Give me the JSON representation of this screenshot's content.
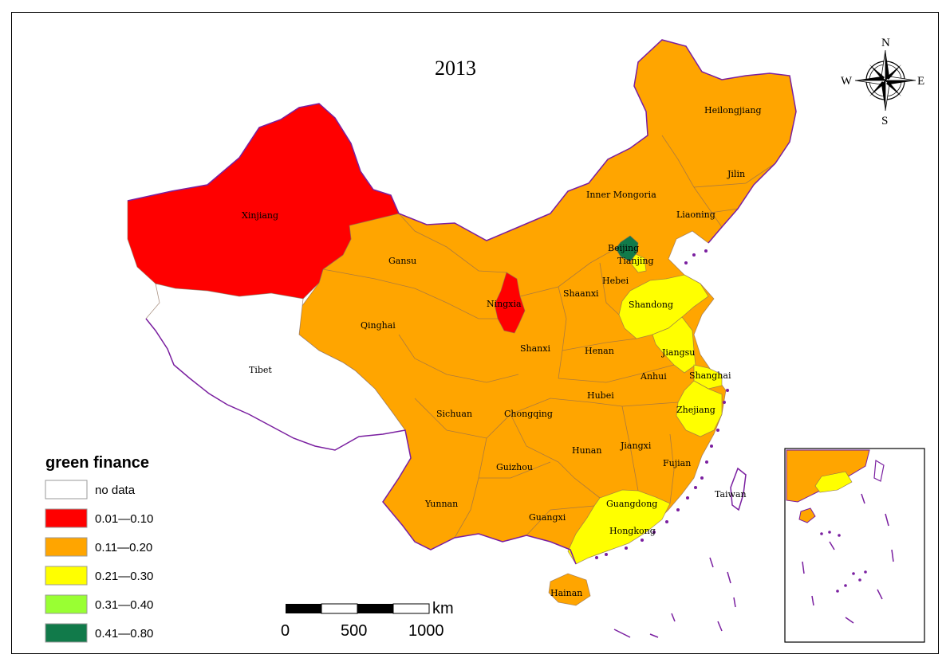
{
  "map": {
    "year": "2013",
    "legend_title": "green finance",
    "legend": [
      {
        "label": "no data",
        "color": "#ffffff"
      },
      {
        "label": "0.01—0.10",
        "color": "#ff0000"
      },
      {
        "label": "0.11—0.20",
        "color": "#ffa500"
      },
      {
        "label": "0.21—0.30",
        "color": "#ffff00"
      },
      {
        "label": "0.31—0.40",
        "color": "#99ff33"
      },
      {
        "label": "0.41—0.80",
        "color": "#117a4a"
      }
    ],
    "scale": {
      "unit": "km",
      "ticks": [
        "0",
        "500",
        "1000"
      ]
    },
    "compass": {
      "n": "N",
      "s": "S",
      "e": "E",
      "w": "W"
    },
    "provinces": [
      {
        "name": "Xinjiang",
        "class": "0.01—0.10"
      },
      {
        "name": "Tibet",
        "class": "no data"
      },
      {
        "name": "Qinghai",
        "class": "0.11—0.20"
      },
      {
        "name": "Gansu",
        "class": "0.11—0.20"
      },
      {
        "name": "Ningxia",
        "class": "0.01—0.10"
      },
      {
        "name": "Inner Mongoria",
        "class": "0.11—0.20"
      },
      {
        "name": "Heilongjiang",
        "class": "0.11—0.20"
      },
      {
        "name": "Jilin",
        "class": "0.11—0.20"
      },
      {
        "name": "Liaoning",
        "class": "0.11—0.20"
      },
      {
        "name": "Beijing",
        "class": "0.41—0.80"
      },
      {
        "name": "Tianjing",
        "class": "0.21—0.30"
      },
      {
        "name": "Hebei",
        "class": "0.11—0.20"
      },
      {
        "name": "Shandong",
        "class": "0.21—0.30"
      },
      {
        "name": "Shaanxi",
        "class": "0.11—0.20"
      },
      {
        "name": "Shanxi",
        "class": "0.11—0.20"
      },
      {
        "name": "Henan",
        "class": "0.11—0.20"
      },
      {
        "name": "Jiangsu",
        "class": "0.21—0.30"
      },
      {
        "name": "Anhui",
        "class": "0.11—0.20"
      },
      {
        "name": "Shanghai",
        "class": "0.21—0.30"
      },
      {
        "name": "Hubei",
        "class": "0.11—0.20"
      },
      {
        "name": "Zhejiang",
        "class": "0.21—0.30"
      },
      {
        "name": "Sichuan",
        "class": "0.11—0.20"
      },
      {
        "name": "Chongqing",
        "class": "0.11—0.20"
      },
      {
        "name": "Hunan",
        "class": "0.11—0.20"
      },
      {
        "name": "Jiangxi",
        "class": "0.11—0.20"
      },
      {
        "name": "Fujian",
        "class": "0.11—0.20"
      },
      {
        "name": "Guizhou",
        "class": "0.11—0.20"
      },
      {
        "name": "Yunnan",
        "class": "0.11—0.20"
      },
      {
        "name": "Guangxi",
        "class": "0.11—0.20"
      },
      {
        "name": "Guangdong",
        "class": "0.21—0.30"
      },
      {
        "name": "Hongkong",
        "class": "0.21—0.30"
      },
      {
        "name": "Taiwan",
        "class": "no data"
      },
      {
        "name": "Hainan",
        "class": "0.11—0.20"
      }
    ]
  }
}
